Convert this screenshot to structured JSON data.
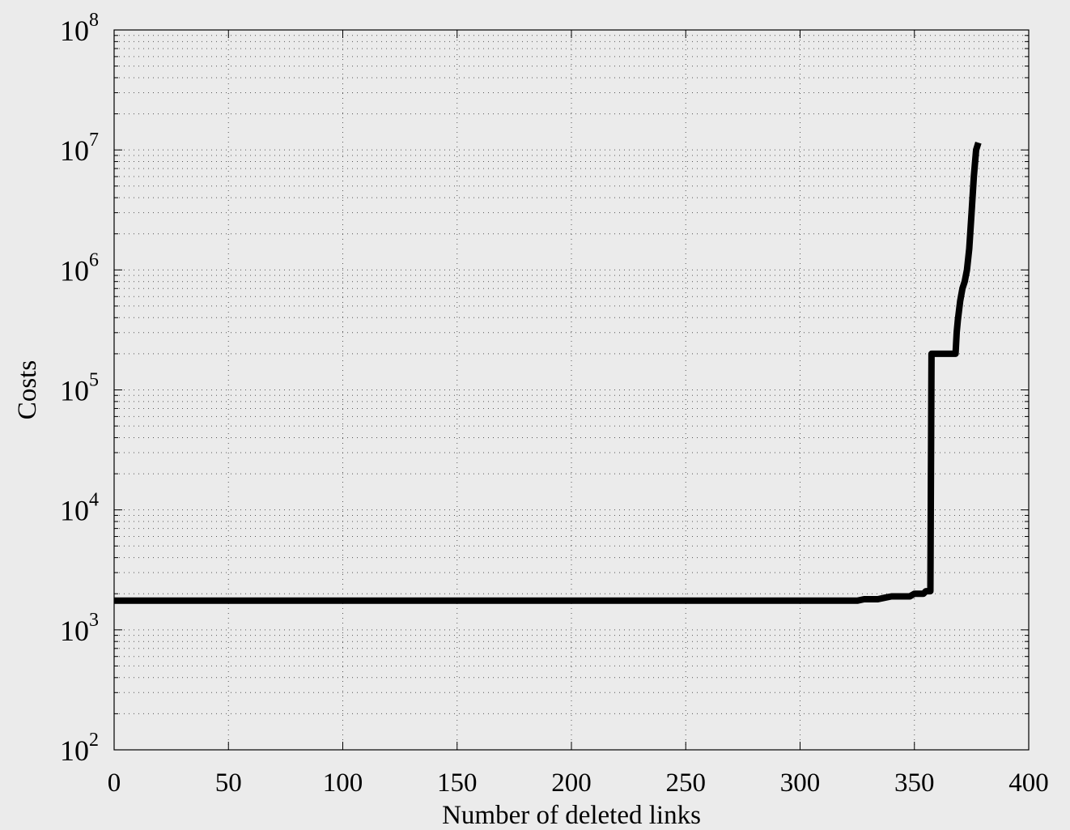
{
  "chart_data": {
    "type": "line",
    "title": "",
    "xlabel": "Number of deleted links",
    "ylabel": "Costs",
    "xlim": [
      0,
      400
    ],
    "ylim": [
      100,
      100000000
    ],
    "y_scale": "log",
    "grid": true,
    "minor_grid": true,
    "x_ticks": [
      "0",
      "50",
      "100",
      "150",
      "200",
      "250",
      "300",
      "350",
      "400"
    ],
    "y_ticks": [
      {
        "base": "10",
        "exp": "2"
      },
      {
        "base": "10",
        "exp": "3"
      },
      {
        "base": "10",
        "exp": "4"
      },
      {
        "base": "10",
        "exp": "5"
      },
      {
        "base": "10",
        "exp": "6"
      },
      {
        "base": "10",
        "exp": "7"
      },
      {
        "base": "10",
        "exp": "8"
      }
    ],
    "series": [
      {
        "color": "#000000",
        "x": [
          0,
          325,
          328,
          334,
          337,
          340,
          348,
          350,
          354,
          355,
          357,
          357.5,
          358,
          363,
          366,
          368,
          368.5,
          369,
          370,
          371,
          372,
          373,
          374,
          375,
          376,
          377,
          378
        ],
        "y": [
          1750,
          1750,
          1800,
          1800,
          1850,
          1900,
          1900,
          2000,
          2000,
          2100,
          2100,
          200000,
          200000,
          200000,
          200000,
          200000,
          300000,
          380000,
          550000,
          700000,
          800000,
          1000000,
          1500000,
          3000000,
          6000000,
          10000000,
          11500000
        ]
      }
    ]
  }
}
